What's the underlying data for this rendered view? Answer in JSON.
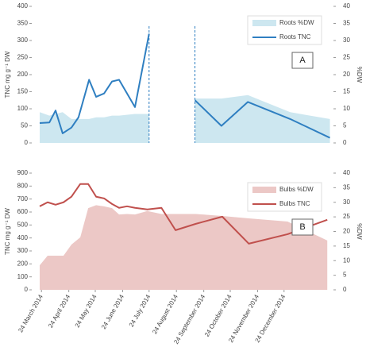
{
  "chart_data": [
    {
      "type": "line",
      "annotation": "A",
      "ylabel": "TNC mg g⁻¹ DW",
      "y2label": "%DW",
      "legend": "upper right",
      "xlim": [
        "2014-03-13",
        "2015-02-18"
      ],
      "ylim": [
        0,
        400
      ],
      "yticks": [
        0,
        50,
        100,
        150,
        200,
        250,
        300,
        350,
        400
      ],
      "y2lim": [
        0,
        40
      ],
      "y2ticks": [
        0,
        5,
        10,
        15,
        20,
        25,
        30,
        35,
        40
      ],
      "x": [
        "2014-03-22",
        "2014-04-02",
        "2014-04-09",
        "2014-04-17",
        "2014-04-27",
        "2014-05-05",
        "2014-05-17",
        "2014-05-25",
        "2014-06-03",
        "2014-06-12",
        "2014-06-20",
        "2014-07-08",
        "2014-07-24",
        "2014-08-24",
        "2014-09-14",
        "2014-10-14",
        "2014-11-13",
        "2014-12-31",
        "2015-02-14"
      ],
      "series": [
        {
          "name": "Roots %DW",
          "kind": "area",
          "axis": "y2",
          "color": "#cde7f0",
          "values": [
            9,
            8,
            8.5,
            9,
            7,
            7,
            7,
            7.5,
            7.5,
            8,
            8,
            8.5,
            8.5,
            null,
            13,
            13,
            14,
            9,
            7
          ]
        },
        {
          "name": "Roots TNC",
          "kind": "line",
          "color": "#2f7fc1",
          "values": [
            58,
            60,
            95,
            28,
            45,
            75,
            185,
            135,
            145,
            180,
            185,
            105,
            320,
            null,
            125,
            50,
            120,
            70,
            15
          ]
        }
      ]
    },
    {
      "type": "line",
      "annotation": "B",
      "ylabel": "TNC mg g⁻¹ DW",
      "y2label": "%DW",
      "legend": "upper right",
      "xlim": [
        "2014-03-13",
        "2015-02-18"
      ],
      "ylim": [
        0,
        900
      ],
      "yticks": [
        0,
        100,
        200,
        300,
        400,
        500,
        600,
        700,
        800,
        900
      ],
      "y2lim": [
        0,
        40
      ],
      "y2ticks": [
        0,
        5,
        10,
        15,
        20,
        25,
        30,
        35,
        40
      ],
      "xticks": [
        {
          "value": "2014-03-24",
          "label": "24 March 2014"
        },
        {
          "value": "2014-04-24",
          "label": "24 April 2014"
        },
        {
          "value": "2014-05-24",
          "label": "24 May 2014"
        },
        {
          "value": "2014-06-24",
          "label": "24 June 2014"
        },
        {
          "value": "2014-07-24",
          "label": "24 July 2014"
        },
        {
          "value": "2014-08-24",
          "label": "24 August 2014"
        },
        {
          "value": "2014-09-24",
          "label": "24 September 2014"
        },
        {
          "value": "2014-10-24",
          "label": "24 October 2014"
        },
        {
          "value": "2014-11-24",
          "label": "24 November 2014"
        },
        {
          "value": "2014-12-24",
          "label": "24 December 2014"
        }
      ],
      "x": [
        "2014-03-22",
        "2014-03-31",
        "2014-04-09",
        "2014-04-18",
        "2014-04-27",
        "2014-05-07",
        "2014-05-16",
        "2014-05-25",
        "2014-06-03",
        "2014-06-12",
        "2014-06-20",
        "2014-06-29",
        "2014-07-08",
        "2014-07-22",
        "2014-08-07",
        "2014-08-23",
        "2014-09-15",
        "2014-10-15",
        "2014-11-14",
        "2014-12-28",
        "2015-02-11"
      ],
      "series": [
        {
          "name": "Bulbs %DW",
          "kind": "area",
          "axis": "y2",
          "color": "#ecc8c6",
          "values": [
            8.4,
            11.7,
            11.7,
            11.7,
            15.5,
            18,
            28,
            29,
            28.6,
            28,
            25.8,
            26,
            25.8,
            27,
            26,
            26,
            26,
            25.3,
            24.5,
            23.4,
            16.9
          ]
        },
        {
          "name": "Bulbs TNC",
          "kind": "line",
          "color": "#c0504d",
          "values": [
            644,
            675,
            656,
            675,
            718,
            816,
            816,
            718,
            705,
            662,
            632,
            644,
            632,
            620,
            632,
            460,
            509,
            564,
            356,
            429,
            540
          ]
        }
      ]
    }
  ]
}
